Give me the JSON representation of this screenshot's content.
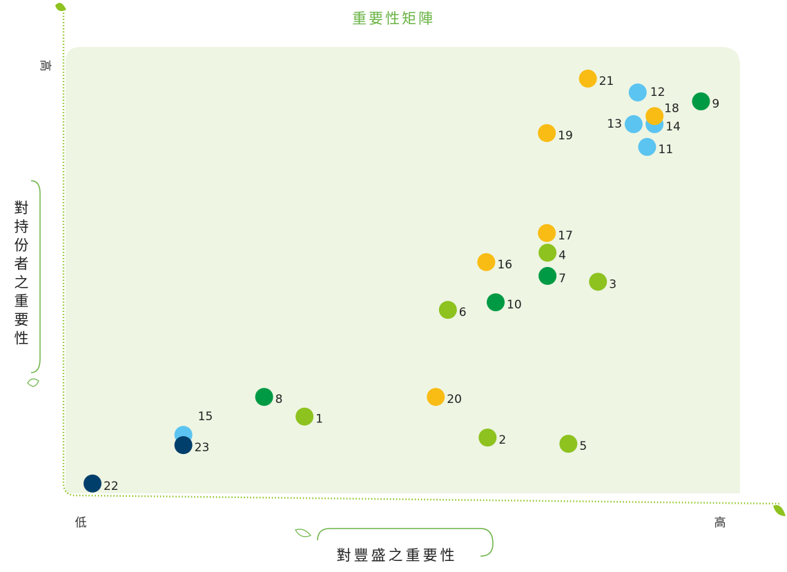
{
  "chart_data": {
    "type": "scatter",
    "title": "重要性矩陣",
    "x_label": "對豐盛之重要性",
    "y_label": "對持份者之重要性",
    "x_low": "低",
    "x_high": "高",
    "y_high": "高",
    "xlim": [
      0,
      100
    ],
    "ylim": [
      0,
      100
    ],
    "points": {
      "labels": [
        "21",
        "12",
        "9",
        "14",
        "18",
        "13",
        "19",
        "11",
        "17",
        "4",
        "16",
        "7",
        "3",
        "10",
        "6",
        "8",
        "20",
        "1",
        "15",
        "23",
        "2",
        "5",
        "22"
      ],
      "x": [
        77.6,
        85.0,
        94.4,
        87.5,
        87.5,
        84.4,
        71.5,
        86.4,
        71.5,
        71.6,
        62.5,
        71.6,
        79.1,
        63.9,
        56.8,
        29.5,
        55.0,
        35.5,
        17.5,
        17.5,
        62.7,
        74.7,
        4.0
      ],
      "y": [
        92.9,
        89.8,
        87.8,
        82.7,
        84.5,
        82.7,
        80.7,
        77.6,
        58.3,
        53.9,
        51.8,
        48.7,
        47.4,
        42.8,
        41.1,
        21.6,
        21.6,
        17.2,
        13.1,
        10.8,
        12.5,
        11.1,
        2.2
      ],
      "colors": [
        "#f9bc15",
        "#5bc4f1",
        "#009a44",
        "#5bc4f1",
        "#f9bc15",
        "#5bc4f1",
        "#f9bc15",
        "#5bc4f1",
        "#f9bc15",
        "#8dc21f",
        "#f9bc15",
        "#009a44",
        "#8dc21f",
        "#009a44",
        "#8dc21f",
        "#009a44",
        "#f9bc15",
        "#8dc21f",
        "#5bc4f1",
        "#003f6b",
        "#8dc21f",
        "#8dc21f",
        "#003f6b"
      ]
    }
  }
}
